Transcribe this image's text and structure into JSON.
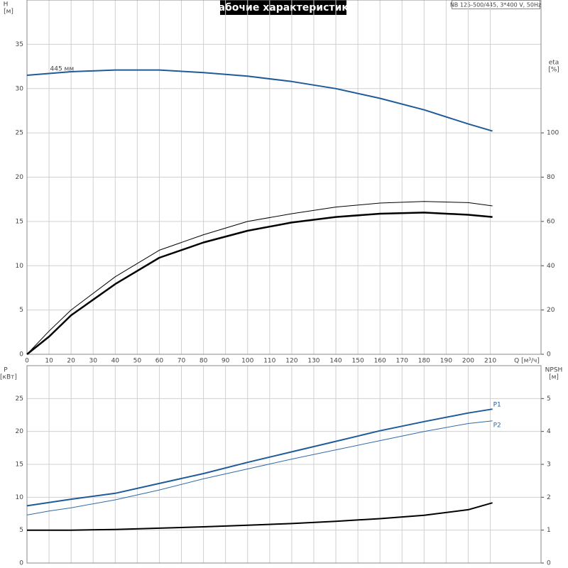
{
  "chart_data": [
    {
      "type": "line",
      "title": "Рабочие характеристики",
      "subtitle": "NB 125-500/445, 3*400 V, 50Hz",
      "ylabel": "H",
      "yunit": "[м]",
      "y2label": "eta",
      "y2unit": "[%]",
      "xlabel": "Q [м³/ч]",
      "x": [
        0,
        10,
        20,
        40,
        60,
        80,
        100,
        120,
        140,
        160,
        180,
        200,
        211
      ],
      "xlim": [
        0,
        233
      ],
      "xticks": [
        0,
        10,
        20,
        30,
        40,
        50,
        60,
        70,
        80,
        90,
        100,
        110,
        120,
        130,
        140,
        150,
        160,
        170,
        180,
        190,
        200,
        210
      ],
      "ylim": [
        0,
        40
      ],
      "yticks": [
        0,
        5,
        10,
        15,
        20,
        25,
        30,
        35
      ],
      "y2lim": [
        0,
        160
      ],
      "y2ticks": [
        0,
        20,
        40,
        60,
        80,
        100
      ],
      "grid": true,
      "series": [
        {
          "label": "445 мм",
          "color": "#1f5b98",
          "width": 2,
          "values": [
            31.5,
            31.7,
            31.9,
            32.1,
            32.1,
            31.8,
            31.4,
            30.8,
            30.0,
            28.9,
            27.6,
            26.0,
            25.2
          ]
        },
        {
          "color": "#000000",
          "width": 1,
          "axis": "y2",
          "values": [
            0,
            10.5,
            20,
            35,
            47,
            54,
            60,
            63.5,
            66.5,
            68.3,
            69,
            68.5,
            67
          ]
        },
        {
          "color": "#000000",
          "width": 2.5,
          "axis": "y2",
          "values": [
            0,
            8,
            17.6,
            31.7,
            43.6,
            50.5,
            55.8,
            59.5,
            62,
            63.5,
            64,
            63,
            62
          ]
        }
      ]
    },
    {
      "type": "line",
      "ylabel": "P",
      "yunit": "[кВт]",
      "y2label": "NPSH",
      "y2unit": "[м]",
      "x": [
        0,
        10,
        20,
        40,
        60,
        80,
        100,
        120,
        140,
        160,
        180,
        200,
        211
      ],
      "xlim": [
        0,
        233
      ],
      "xticks": [
        0,
        10,
        20,
        30,
        40,
        50,
        60,
        70,
        80,
        90,
        100,
        110,
        120,
        130,
        140,
        150,
        160,
        170,
        180,
        190,
        200,
        210
      ],
      "ylim": [
        0,
        30
      ],
      "yticks": [
        0,
        5,
        10,
        15,
        20,
        25
      ],
      "y2lim": [
        0,
        6
      ],
      "y2ticks": [
        0,
        1,
        2,
        3,
        4,
        5
      ],
      "grid": true,
      "series": [
        {
          "name": "P1",
          "color": "#1f5b98",
          "width": 2,
          "values": [
            8.7,
            9.2,
            9.7,
            10.6,
            12.1,
            13.6,
            15.3,
            16.9,
            18.5,
            20.1,
            21.5,
            22.8,
            23.4
          ]
        },
        {
          "name": "P2",
          "color": "#2f6aa8",
          "width": 1,
          "values": [
            7.3,
            7.9,
            8.4,
            9.6,
            11.1,
            12.8,
            14.3,
            15.8,
            17.2,
            18.6,
            20.0,
            21.2,
            21.6
          ]
        },
        {
          "color": "#000000",
          "width": 2,
          "axis": "y2",
          "values": [
            1.0,
            1.0,
            1.0,
            1.02,
            1.06,
            1.1,
            1.15,
            1.2,
            1.27,
            1.35,
            1.45,
            1.62,
            1.83
          ]
        }
      ]
    }
  ]
}
